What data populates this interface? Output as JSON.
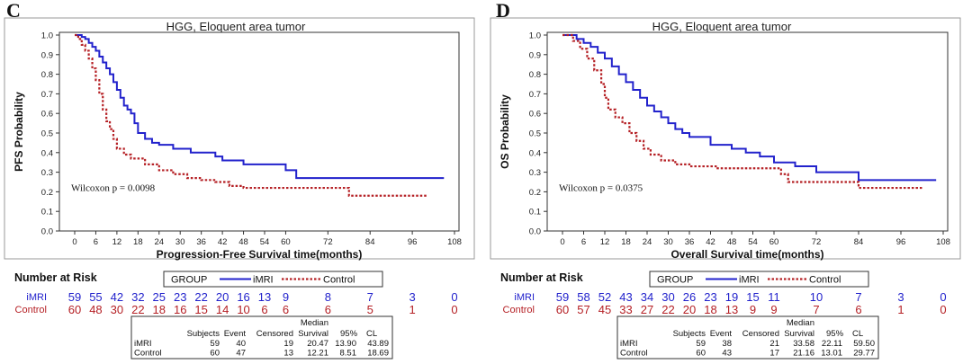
{
  "colors": {
    "imri": "#2222cc",
    "control": "#b52025",
    "axis": "#333333"
  },
  "number_at_risk_label": "Number at Risk",
  "legend": {
    "title": "GROUP",
    "imri": "iMRI",
    "control": "Control"
  },
  "stats_headers": {
    "subjects": "Subjects",
    "event": "Event",
    "censored": "Censored",
    "median_top": "Median",
    "median_bottom": "Survival",
    "ci": "95%",
    "cl": "CL"
  },
  "chart_data": [
    {
      "panel_label": "C",
      "type": "line",
      "title": "HGG, Eloquent area tumor",
      "xlabel": "Progression-Free Survival time(months)",
      "ylabel": "PFS Probability",
      "annotation": "Wilcoxon p = 0.0098",
      "xlim": [
        0,
        108
      ],
      "ylim": [
        0,
        1
      ],
      "xticks": [
        "0",
        "6",
        "12",
        "18",
        "24",
        "30",
        "36",
        "42",
        "48",
        "54",
        "60",
        "72",
        "84",
        "96",
        "108"
      ],
      "yticks": [
        "0.0",
        "0.1",
        "0.2",
        "0.3",
        "0.4",
        "0.5",
        "0.6",
        "0.7",
        "0.8",
        "0.9",
        "1.0"
      ],
      "grid": false,
      "series": [
        {
          "name": "iMRI",
          "style": "solid",
          "x": [
            0,
            2,
            3,
            4,
            5,
            6,
            7,
            8,
            9,
            10,
            11,
            12,
            13,
            14,
            15,
            16,
            17,
            18,
            20,
            22,
            24,
            28,
            33,
            40,
            42,
            44,
            48,
            56,
            60,
            63,
            105
          ],
          "y": [
            1.0,
            0.99,
            0.98,
            0.96,
            0.94,
            0.92,
            0.89,
            0.86,
            0.83,
            0.8,
            0.76,
            0.72,
            0.68,
            0.64,
            0.62,
            0.6,
            0.55,
            0.5,
            0.47,
            0.45,
            0.44,
            0.42,
            0.4,
            0.38,
            0.36,
            0.36,
            0.34,
            0.34,
            0.31,
            0.27,
            0.27
          ]
        },
        {
          "name": "Control",
          "style": "dotted",
          "x": [
            0,
            1,
            2,
            3,
            4,
            5,
            6,
            7,
            8,
            9,
            10,
            11,
            12,
            14,
            16,
            20,
            24,
            28,
            32,
            36,
            40,
            44,
            48,
            76,
            78,
            100
          ],
          "y": [
            1.0,
            0.98,
            0.95,
            0.92,
            0.88,
            0.83,
            0.77,
            0.7,
            0.62,
            0.56,
            0.52,
            0.47,
            0.42,
            0.39,
            0.37,
            0.34,
            0.31,
            0.29,
            0.27,
            0.26,
            0.25,
            0.23,
            0.22,
            0.22,
            0.18,
            0.18
          ]
        }
      ],
      "risk_table": {
        "ticks": [
          0,
          6,
          12,
          18,
          24,
          30,
          36,
          42,
          48,
          54,
          60,
          72,
          84,
          96,
          108
        ],
        "iMRI": [
          "59",
          "55",
          "42",
          "32",
          "25",
          "23",
          "22",
          "20",
          "16",
          "13",
          "9",
          "8",
          "7",
          "3",
          "0"
        ],
        "Control": [
          "60",
          "48",
          "30",
          "22",
          "18",
          "16",
          "15",
          "14",
          "10",
          "6",
          "6",
          "6",
          "5",
          "1",
          "0"
        ]
      },
      "stats": [
        {
          "group": "iMRI",
          "subjects": "59",
          "event": "40",
          "censored": "19",
          "median": "20.47",
          "lcl": "13.90",
          "ucl": "43.89"
        },
        {
          "group": "Control",
          "subjects": "60",
          "event": "47",
          "censored": "13",
          "median": "12.21",
          "lcl": "8.51",
          "ucl": "18.69"
        }
      ]
    },
    {
      "panel_label": "D",
      "type": "line",
      "title": "HGG, Eloquent area tumor",
      "xlabel": "Overall Survival time(months)",
      "ylabel": "OS Probability",
      "annotation": "Wilcoxon p = 0.0375",
      "xlim": [
        0,
        108
      ],
      "ylim": [
        0,
        1
      ],
      "xticks": [
        "0",
        "6",
        "12",
        "18",
        "24",
        "30",
        "36",
        "42",
        "48",
        "54",
        "60",
        "72",
        "84",
        "96",
        "108"
      ],
      "yticks": [
        "0.0",
        "0.1",
        "0.2",
        "0.3",
        "0.4",
        "0.5",
        "0.6",
        "0.7",
        "0.8",
        "0.9",
        "1.0"
      ],
      "grid": false,
      "series": [
        {
          "name": "iMRI",
          "style": "solid",
          "x": [
            0,
            4,
            6,
            8,
            10,
            12,
            14,
            16,
            18,
            20,
            22,
            24,
            26,
            28,
            30,
            32,
            34,
            36,
            42,
            48,
            52,
            56,
            60,
            66,
            72,
            78,
            84,
            106
          ],
          "y": [
            1.0,
            0.98,
            0.96,
            0.94,
            0.91,
            0.88,
            0.84,
            0.8,
            0.76,
            0.72,
            0.68,
            0.64,
            0.61,
            0.58,
            0.55,
            0.52,
            0.5,
            0.48,
            0.44,
            0.42,
            0.4,
            0.38,
            0.35,
            0.33,
            0.3,
            0.3,
            0.26,
            0.26
          ]
        },
        {
          "name": "Control",
          "style": "dotted",
          "x": [
            0,
            3,
            5,
            7,
            9,
            11,
            12,
            13,
            15,
            17,
            19,
            21,
            23,
            25,
            28,
            32,
            36,
            40,
            44,
            48,
            56,
            62,
            64,
            84,
            102
          ],
          "y": [
            1.0,
            0.97,
            0.93,
            0.88,
            0.82,
            0.75,
            0.68,
            0.62,
            0.58,
            0.55,
            0.5,
            0.46,
            0.42,
            0.39,
            0.36,
            0.34,
            0.33,
            0.33,
            0.32,
            0.32,
            0.32,
            0.29,
            0.25,
            0.22,
            0.22
          ]
        }
      ],
      "risk_table": {
        "ticks": [
          0,
          6,
          12,
          18,
          24,
          30,
          36,
          42,
          48,
          54,
          60,
          72,
          84,
          96,
          108
        ],
        "iMRI": [
          "59",
          "58",
          "52",
          "43",
          "34",
          "30",
          "26",
          "23",
          "19",
          "15",
          "11",
          "10",
          "7",
          "3",
          "0"
        ],
        "Control": [
          "60",
          "57",
          "45",
          "33",
          "27",
          "22",
          "20",
          "18",
          "13",
          "9",
          "9",
          "7",
          "6",
          "1",
          "0"
        ]
      },
      "stats": [
        {
          "group": "iMRI",
          "subjects": "59",
          "event": "38",
          "censored": "21",
          "median": "33.58",
          "lcl": "22.11",
          "ucl": "59.50"
        },
        {
          "group": "Control",
          "subjects": "60",
          "event": "43",
          "censored": "17",
          "median": "21.16",
          "lcl": "13.01",
          "ucl": "29.77"
        }
      ]
    }
  ]
}
